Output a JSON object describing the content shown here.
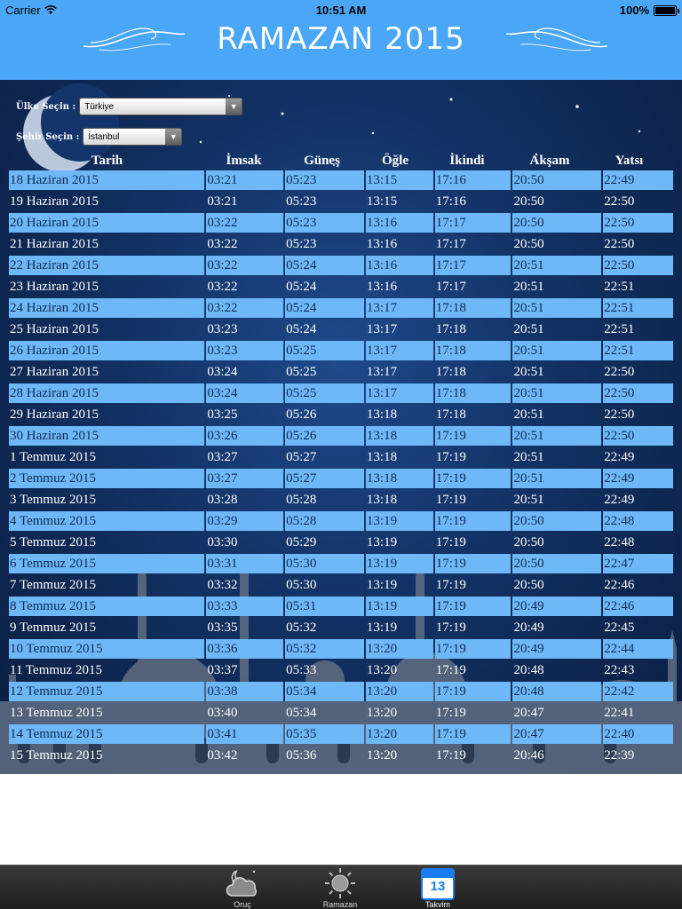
{
  "status_bar": {
    "carrier": "Carrier",
    "time": "10:51 AM",
    "battery": "100%"
  },
  "header": {
    "title": "RAMAZAN 2015"
  },
  "selectors": {
    "country": {
      "label": "Ülke Seçin :",
      "value": "Türkiye"
    },
    "city": {
      "label": "Şehir Seçin :",
      "value": "İstanbul"
    }
  },
  "table": {
    "headers": [
      "Tarih",
      "İmsak",
      "Güneş",
      "Öğle",
      "İkindi",
      "Akşam",
      "Yatsı"
    ],
    "rows": [
      [
        "18 Haziran 2015",
        "03:21",
        "05:23",
        "13:15",
        "17:16",
        "20:50",
        "22:49"
      ],
      [
        "19 Haziran 2015",
        "03:21",
        "05:23",
        "13:15",
        "17:16",
        "20:50",
        "22:50"
      ],
      [
        "20 Haziran 2015",
        "03:22",
        "05:23",
        "13:16",
        "17:17",
        "20:50",
        "22:50"
      ],
      [
        "21 Haziran 2015",
        "03:22",
        "05:23",
        "13:16",
        "17:17",
        "20:50",
        "22:50"
      ],
      [
        "22 Haziran 2015",
        "03:22",
        "05:24",
        "13:16",
        "17:17",
        "20:51",
        "22:50"
      ],
      [
        "23 Haziran 2015",
        "03:22",
        "05:24",
        "13:16",
        "17:17",
        "20:51",
        "22:51"
      ],
      [
        "24 Haziran 2015",
        "03:22",
        "05:24",
        "13:17",
        "17:18",
        "20:51",
        "22:51"
      ],
      [
        "25 Haziran 2015",
        "03:23",
        "05:24",
        "13:17",
        "17:18",
        "20:51",
        "22:51"
      ],
      [
        "26 Haziran 2015",
        "03:23",
        "05:25",
        "13:17",
        "17:18",
        "20:51",
        "22:51"
      ],
      [
        "27 Haziran 2015",
        "03:24",
        "05:25",
        "13:17",
        "17:18",
        "20:51",
        "22:50"
      ],
      [
        "28 Haziran 2015",
        "03:24",
        "05:25",
        "13:17",
        "17:18",
        "20:51",
        "22:50"
      ],
      [
        "29 Haziran 2015",
        "03:25",
        "05:26",
        "13:18",
        "17:18",
        "20:51",
        "22:50"
      ],
      [
        "30 Haziran 2015",
        "03:26",
        "05:26",
        "13:18",
        "17:19",
        "20:51",
        "22:50"
      ],
      [
        "1 Temmuz 2015",
        "03:27",
        "05:27",
        "13:18",
        "17:19",
        "20:51",
        "22:49"
      ],
      [
        "2 Temmuz 2015",
        "03:27",
        "05:27",
        "13:18",
        "17:19",
        "20:51",
        "22:49"
      ],
      [
        "3 Temmuz 2015",
        "03:28",
        "05:28",
        "13:18",
        "17:19",
        "20:51",
        "22:49"
      ],
      [
        "4 Temmuz 2015",
        "03:29",
        "05:28",
        "13:19",
        "17:19",
        "20:50",
        "22:48"
      ],
      [
        "5 Temmuz 2015",
        "03:30",
        "05:29",
        "13:19",
        "17:19",
        "20:50",
        "22:48"
      ],
      [
        "6 Temmuz 2015",
        "03:31",
        "05:30",
        "13:19",
        "17:19",
        "20:50",
        "22:47"
      ],
      [
        "7 Temmuz 2015",
        "03:32",
        "05:30",
        "13:19",
        "17:19",
        "20:50",
        "22:46"
      ],
      [
        "8 Temmuz 2015",
        "03:33",
        "05:31",
        "13:19",
        "17:19",
        "20:49",
        "22:46"
      ],
      [
        "9 Temmuz 2015",
        "03:35",
        "05:32",
        "13:19",
        "17:19",
        "20:49",
        "22:45"
      ],
      [
        "10 Temmuz 2015",
        "03:36",
        "05:32",
        "13:20",
        "17:19",
        "20:49",
        "22:44"
      ],
      [
        "11 Temmuz 2015",
        "03:37",
        "05:33",
        "13:20",
        "17:19",
        "20:48",
        "22:43"
      ],
      [
        "12 Temmuz 2015",
        "03:38",
        "05:34",
        "13:20",
        "17:19",
        "20:48",
        "22:42"
      ],
      [
        "13 Temmuz 2015",
        "03:40",
        "05:34",
        "13:20",
        "17:19",
        "20:47",
        "22:41"
      ],
      [
        "14 Temmuz 2015",
        "03:41",
        "05:35",
        "13:20",
        "17:19",
        "20:47",
        "22:40"
      ],
      [
        "15 Temmuz 2015",
        "03:42",
        "05:36",
        "13:20",
        "17:19",
        "20:46",
        "22:39"
      ]
    ]
  },
  "tabs": [
    {
      "label": "Oruç",
      "icon": "cloud-moon-icon",
      "active": false
    },
    {
      "label": "Ramazan",
      "icon": "sun-icon",
      "active": false
    },
    {
      "label": "Takvim",
      "icon": "calendar-icon",
      "active": true,
      "calendar_day": "13"
    }
  ],
  "colors": {
    "accent": "#4aa6f6",
    "row_highlight": "#6fb8f8",
    "background": "#123163",
    "active_tab": "#1a7cf0"
  }
}
